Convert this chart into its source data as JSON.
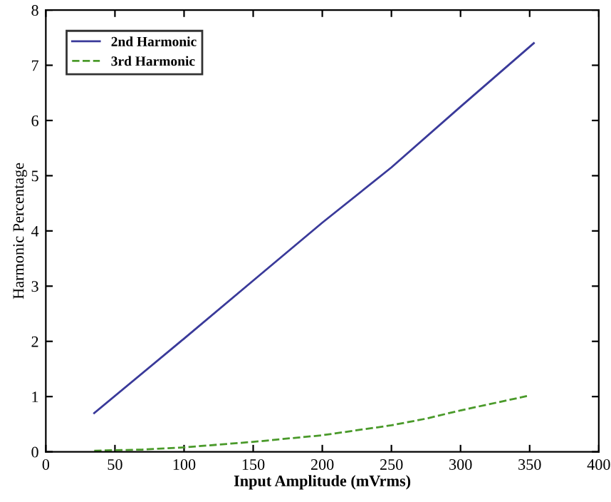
{
  "chart_data": {
    "type": "line",
    "xlabel": "Input Amplitude (mVrms)",
    "ylabel": "Harmonic Percentage",
    "series": [
      {
        "name": "2nd Harmonic",
        "color": "#3a3a9a",
        "line_style": "solid",
        "x": [
          35,
          100,
          150,
          200,
          250,
          300,
          353
        ],
        "values": [
          0.7,
          2.05,
          3.1,
          4.15,
          5.15,
          6.25,
          7.4
        ]
      },
      {
        "name": "3rd Harmonic",
        "color": "#4a9a2a",
        "line_style": "dashed",
        "x": [
          35,
          70,
          100,
          150,
          200,
          250,
          275,
          300,
          350
        ],
        "values": [
          0.02,
          0.04,
          0.08,
          0.18,
          0.3,
          0.48,
          0.6,
          0.75,
          1.02
        ]
      }
    ],
    "xlim": [
      0,
      400
    ],
    "xticks": [
      0,
      50,
      100,
      150,
      200,
      250,
      300,
      350,
      400
    ],
    "ylim": [
      0,
      8
    ],
    "yticks": [
      0,
      1,
      2,
      3,
      4,
      5,
      6,
      7,
      8
    ],
    "grid": false,
    "legend": "top left"
  }
}
